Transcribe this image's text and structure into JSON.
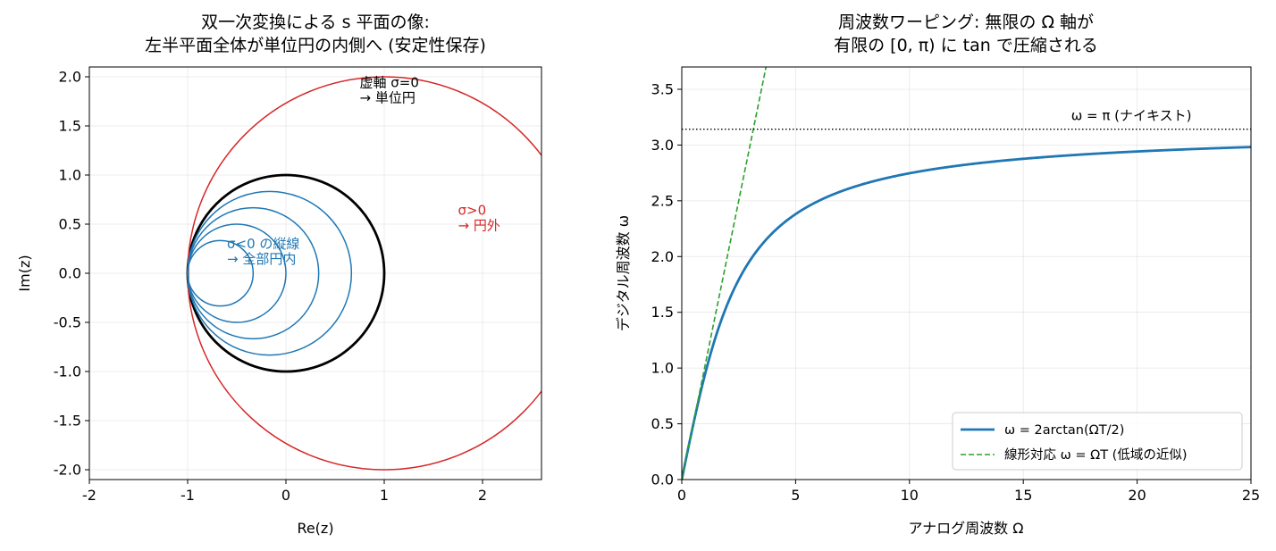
{
  "chart_data": [
    {
      "type": "line",
      "title": [
        "双一次変換による s 平面の像:",
        "左半平面全体が単位円の内側へ (安定性保存)"
      ],
      "xlabel": "Re(z)",
      "ylabel": "Im(z)",
      "xlim": [
        -2,
        2.6
      ],
      "ylim": [
        -2.1,
        2.1
      ],
      "xticks": [
        -2,
        -1,
        0,
        1,
        2
      ],
      "xtick_labels": [
        "-2",
        "-1",
        "0",
        "1",
        "2"
      ],
      "yticks": [
        -2.0,
        -1.5,
        -1.0,
        -0.5,
        0.0,
        0.5,
        1.0,
        1.5,
        2.0
      ],
      "ytick_labels": [
        "-2.0",
        "-1.5",
        "-1.0",
        "-0.5",
        "0.0",
        "0.5",
        "1.0",
        "1.5",
        "2.0"
      ],
      "grid": true,
      "series": [
        {
          "role": "unit-circle",
          "center": [
            0,
            0
          ],
          "radius": 1.0,
          "color": "#000000",
          "linewidth": 2.8
        },
        {
          "role": "sigma-positive-circle",
          "center": [
            1.0,
            0
          ],
          "radius": 2.0,
          "color": "#d62728",
          "linewidth": 1.5
        },
        {
          "role": "sigma-negative-circle",
          "center": [
            -0.1667,
            0
          ],
          "radius": 0.8333,
          "color": "#1f77b4",
          "linewidth": 1.5
        },
        {
          "role": "sigma-negative-circle",
          "center": [
            -0.3333,
            0
          ],
          "radius": 0.6667,
          "color": "#1f77b4",
          "linewidth": 1.5
        },
        {
          "role": "sigma-negative-circle",
          "center": [
            -0.5,
            0
          ],
          "radius": 0.5,
          "color": "#1f77b4",
          "linewidth": 1.5
        },
        {
          "role": "sigma-negative-circle",
          "center": [
            -0.6667,
            0
          ],
          "radius": 0.3333,
          "color": "#1f77b4",
          "linewidth": 1.5
        }
      ],
      "annotations": [
        {
          "lines": [
            "虚軸 σ=0",
            "→ 単位円"
          ],
          "x": 0.75,
          "y": 1.74,
          "color": "#000000"
        },
        {
          "lines": [
            "σ>0",
            "→ 円外"
          ],
          "x": 1.75,
          "y": 0.44,
          "color": "#d62728"
        },
        {
          "lines": [
            "σ<0 の縦線",
            "→ 全部円内"
          ],
          "x": -0.6,
          "y": 0.1,
          "color": "#1f77b4"
        }
      ]
    },
    {
      "type": "line",
      "title": [
        "周波数ワーピング: 無限の Ω 軸が",
        "有限の [0, π) に tan で圧縮される"
      ],
      "xlabel": "アナログ周波数 Ω",
      "ylabel": "デジタル周波数 ω",
      "xlim": [
        0,
        25
      ],
      "ylim": [
        0,
        3.7
      ],
      "xticks": [
        0,
        5,
        10,
        15,
        20,
        25
      ],
      "xtick_labels": [
        "0",
        "5",
        "10",
        "15",
        "20",
        "25"
      ],
      "yticks": [
        0.0,
        0.5,
        1.0,
        1.5,
        2.0,
        2.5,
        3.0,
        3.5
      ],
      "ytick_labels": [
        "0.0",
        "0.5",
        "1.0",
        "1.5",
        "2.0",
        "2.5",
        "3.0",
        "3.5"
      ],
      "grid": true,
      "legend_position": "lower-right",
      "T": 1,
      "series": [
        {
          "name": "ω = 2arctan(ΩT/2)",
          "function": "2*atan(x/2)",
          "color": "#1f77b4",
          "linestyle": "solid",
          "linewidth": 2.8
        },
        {
          "name": "線形対応 ω = ΩT (低域の近似)",
          "function": "x",
          "color": "#2ca02c",
          "linestyle": "dashed",
          "linewidth": 1.6
        }
      ],
      "reference_lines": [
        {
          "y": 3.14159,
          "color": "#000000",
          "linestyle": "dotted",
          "label": "ω = π (ナイキスト)"
        }
      ]
    }
  ]
}
